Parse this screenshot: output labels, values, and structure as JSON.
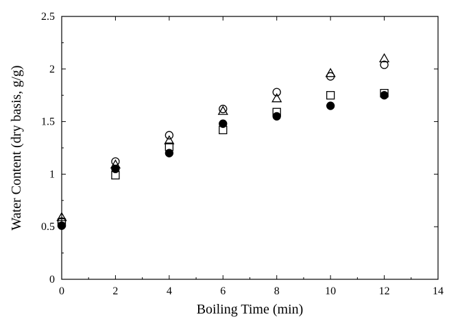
{
  "chart_data": {
    "type": "scatter",
    "title": "",
    "xlabel": "Boiling Time (min)",
    "ylabel": "Water Content (dry basis, g/g)",
    "xlim": [
      0,
      14
    ],
    "ylim": [
      0,
      2.5
    ],
    "xticks": [
      0,
      2,
      4,
      6,
      8,
      10,
      12,
      14
    ],
    "yticks": [
      0,
      0.5,
      1,
      1.5,
      2,
      2.5
    ],
    "xtick_labels": [
      "0",
      "2",
      "4",
      "6",
      "8",
      "10",
      "12",
      "14"
    ],
    "ytick_labels": [
      "0",
      "0.5",
      "1",
      "1.5",
      "2",
      "2.5"
    ],
    "grid": false,
    "legend": "none",
    "series": [
      {
        "marker": "filled-circle",
        "x": [
          0,
          2,
          4,
          6,
          8,
          10,
          12
        ],
        "y": [
          0.51,
          1.05,
          1.2,
          1.48,
          1.55,
          1.65,
          1.75
        ]
      },
      {
        "marker": "open-square",
        "x": [
          0,
          2,
          4,
          6,
          8,
          10,
          12
        ],
        "y": [
          0.54,
          0.99,
          1.26,
          1.42,
          1.59,
          1.75,
          1.77
        ]
      },
      {
        "marker": "open-circle",
        "x": [
          0,
          2,
          4,
          6,
          8,
          10,
          12
        ],
        "y": [
          0.55,
          1.12,
          1.37,
          1.62,
          1.78,
          1.93,
          2.04
        ]
      },
      {
        "marker": "open-triangle",
        "x": [
          0,
          2,
          4,
          6,
          8,
          10,
          12
        ],
        "y": [
          0.59,
          1.09,
          1.32,
          1.6,
          1.72,
          1.96,
          2.1
        ]
      }
    ]
  }
}
